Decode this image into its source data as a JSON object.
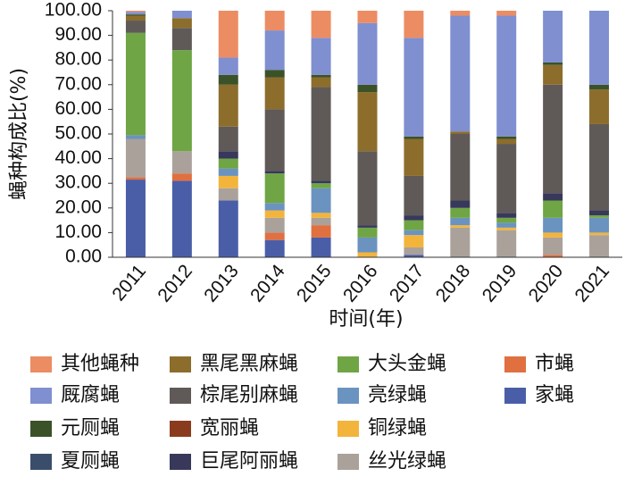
{
  "chart_data": {
    "type": "stacked_bar",
    "y_label": "蝇种构成比(%)",
    "x_label": "时间(年)",
    "categories": [
      "2011",
      "2012",
      "2013",
      "2014",
      "2015",
      "2016",
      "2017",
      "2018",
      "2019",
      "2020",
      "2021"
    ],
    "ylim": [
      0,
      100
    ],
    "yticks": [
      {
        "value": 0,
        "label": "0.00"
      },
      {
        "value": 10,
        "label": "10.00"
      },
      {
        "value": 20,
        "label": "20.00"
      },
      {
        "value": 30,
        "label": "30.00"
      },
      {
        "value": 40,
        "label": "40.00"
      },
      {
        "value": 50,
        "label": "50.00"
      },
      {
        "value": 60,
        "label": "60.00"
      },
      {
        "value": 70,
        "label": "70.00"
      },
      {
        "value": 80,
        "label": "80.00"
      },
      {
        "value": 90,
        "label": "90.00"
      },
      {
        "value": 100,
        "label": "100.00"
      }
    ],
    "series": [
      {
        "name": "家蝇",
        "color": "#4a5ea8",
        "values": [
          31.5,
          31,
          23,
          7,
          8,
          0,
          1,
          0,
          0,
          0,
          0
        ]
      },
      {
        "name": "宽丽蝇",
        "color": "#8a3b1e",
        "values": [
          0,
          0,
          0,
          0,
          0,
          0,
          0,
          0,
          0,
          0,
          0
        ]
      },
      {
        "name": "市蝇",
        "color": "#e07040",
        "values": [
          1,
          3,
          0,
          3,
          5,
          0,
          0,
          0,
          0,
          1,
          0
        ]
      },
      {
        "name": "丝光绿蝇",
        "color": "#aaa19b",
        "values": [
          15.5,
          9,
          5,
          6,
          3,
          0,
          3,
          12,
          11,
          7,
          9
        ]
      },
      {
        "name": "铜绿蝇",
        "color": "#f3b43c",
        "values": [
          0,
          0,
          5,
          3,
          2,
          2,
          5,
          1,
          1,
          2,
          1
        ]
      },
      {
        "name": "亮绿蝇",
        "color": "#6b93c0",
        "values": [
          1.5,
          0,
          3,
          3,
          10,
          6,
          2,
          3,
          2,
          6,
          6
        ]
      },
      {
        "name": "大头金蝇",
        "color": "#6fa544",
        "values": [
          41.5,
          41,
          4,
          12,
          2,
          4,
          4,
          4,
          2,
          7,
          1
        ]
      },
      {
        "name": "夏厕蝇",
        "color": "#3a4e6c",
        "values": [
          0,
          0,
          0,
          0,
          0,
          0,
          0,
          0,
          0,
          0,
          0
        ]
      },
      {
        "name": "巨尾阿丽蝇",
        "color": "#38385a",
        "values": [
          0,
          0,
          3,
          1,
          1,
          1,
          2,
          3,
          2,
          3,
          2
        ]
      },
      {
        "name": "棕尾别麻蝇",
        "color": "#5f5a58",
        "values": [
          5,
          9,
          10,
          25,
          38,
          30,
          16,
          27,
          28,
          44,
          35
        ]
      },
      {
        "name": "黑尾黑麻蝇",
        "color": "#8c6d2c",
        "values": [
          2,
          4,
          17,
          13,
          4,
          24,
          15,
          1,
          2,
          8,
          14
        ]
      },
      {
        "name": "元厕蝇",
        "color": "#3b5228",
        "values": [
          0.5,
          0,
          4,
          3,
          1,
          3,
          1,
          0,
          1,
          1,
          2
        ]
      },
      {
        "name": "厩腐蝇",
        "color": "#7f8fd0",
        "values": [
          1,
          3,
          7,
          16,
          15,
          25,
          40,
          47,
          49,
          21,
          30
        ]
      },
      {
        "name": "其他蝇种",
        "color": "#ec8c63",
        "values": [
          0.5,
          0,
          19,
          8,
          11,
          5,
          11,
          2,
          2,
          0,
          0
        ]
      }
    ]
  }
}
